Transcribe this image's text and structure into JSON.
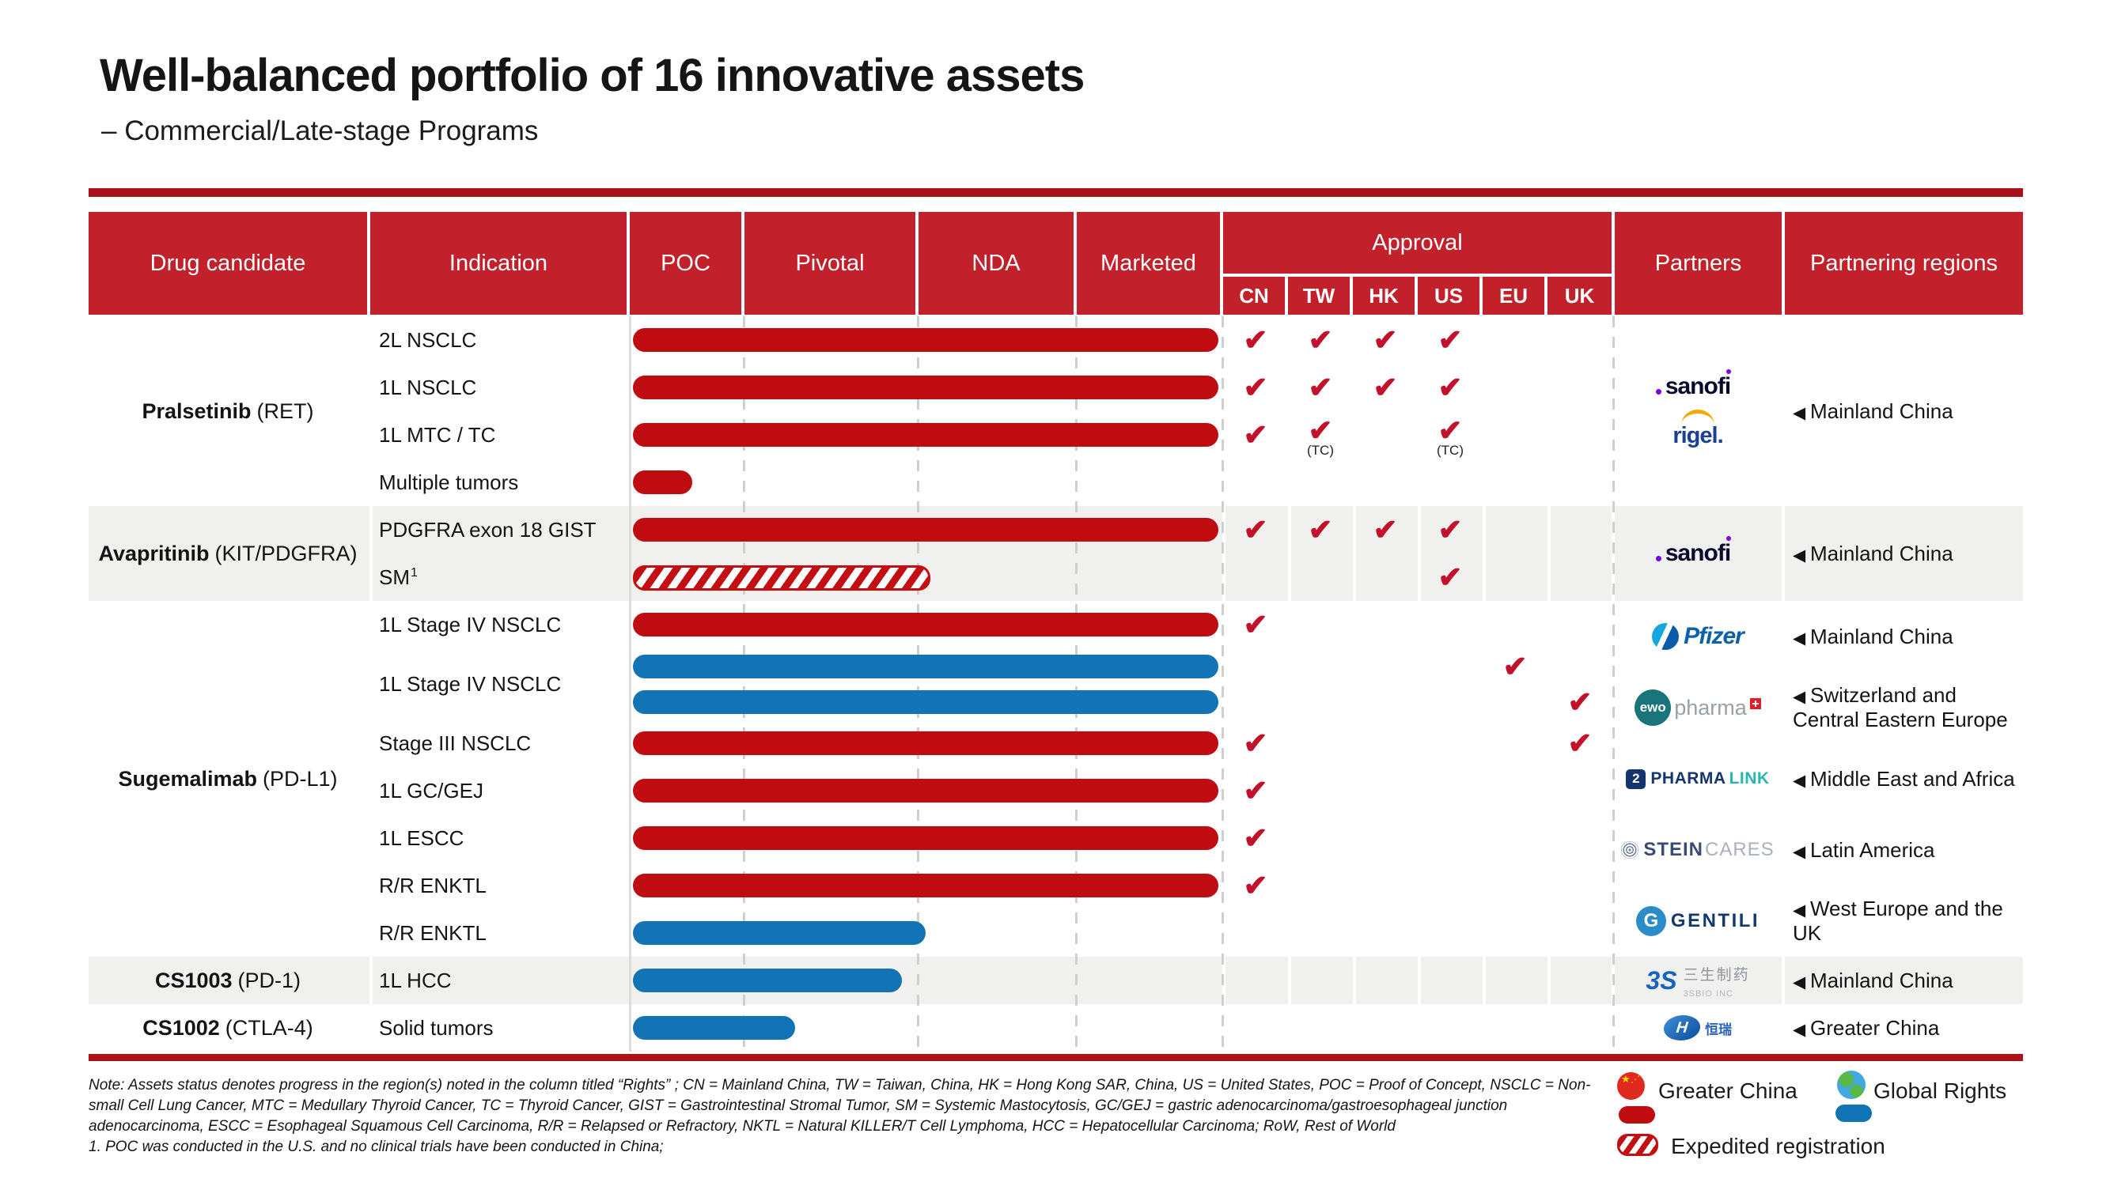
{
  "title": "Well-balanced portfolio of 16 innovative assets",
  "subtitle": "– Commercial/Late-stage Programs",
  "colors": {
    "header_red": "#C2212B",
    "rule_red": "#A81117",
    "bar_red": "#C00C10",
    "bar_blue": "#1273B5",
    "check_red": "#C2122B",
    "shaded_row_gray": "#F0F0EE"
  },
  "table": {
    "headers": {
      "drug": "Drug candidate",
      "indication": "Indication",
      "poc": "POC",
      "pivotal": "Pivotal",
      "nda": "NDA",
      "marketed": "Marketed",
      "approval": "Approval",
      "approval_regions": [
        "CN",
        "TW",
        "HK",
        "US",
        "EU",
        "UK"
      ],
      "partners": "Partners",
      "partnering": "Partnering regions"
    }
  },
  "groups": [
    {
      "drug": "Pralsetinib",
      "target": "(RET)",
      "shaded": false,
      "rows": [
        {
          "indication": "2L NSCLC",
          "lanes": [
            {
              "bar": {
                "color": "red",
                "len": 740
              },
              "checks": [
                {
                  "r": "CN"
                },
                {
                  "r": "TW"
                },
                {
                  "r": "HK"
                },
                {
                  "r": "US"
                }
              ]
            }
          ]
        },
        {
          "indication": "1L NSCLC",
          "lanes": [
            {
              "bar": {
                "color": "red",
                "len": 740
              },
              "checks": [
                {
                  "r": "CN"
                },
                {
                  "r": "TW"
                },
                {
                  "r": "HK"
                },
                {
                  "r": "US"
                }
              ]
            }
          ]
        },
        {
          "indication": "1L MTC / TC",
          "lanes": [
            {
              "bar": {
                "color": "red",
                "len": 740
              },
              "checks": [
                {
                  "r": "CN"
                },
                {
                  "r": "TW",
                  "note": "(TC)"
                },
                {
                  "r": "US",
                  "note": "(TC)"
                }
              ]
            }
          ]
        },
        {
          "indication": "Multiple tumors",
          "lanes": [
            {
              "bar": {
                "color": "red",
                "len": 75
              },
              "checks": []
            }
          ]
        }
      ],
      "partner_rows": [
        {
          "logos": [
            "sanofi",
            "rigel"
          ],
          "region": "Mainland China"
        }
      ]
    },
    {
      "drug": "Avapritinib",
      "target": "(KIT/PDGFRA)",
      "shaded": true,
      "rows": [
        {
          "indication": "PDGFRA exon 18 GIST",
          "lanes": [
            {
              "bar": {
                "color": "red",
                "len": 740
              },
              "checks": [
                {
                  "r": "CN"
                },
                {
                  "r": "TW"
                },
                {
                  "r": "HK"
                },
                {
                  "r": "US"
                }
              ]
            }
          ]
        },
        {
          "indication": "SM",
          "sup": "1",
          "lanes": [
            {
              "bar": {
                "color": "red",
                "len": 370,
                "hatched": true
              },
              "checks": [
                {
                  "r": "US"
                }
              ]
            }
          ]
        }
      ],
      "partner_rows": [
        {
          "logos": [
            "sanofi"
          ],
          "region": "Mainland China"
        }
      ]
    },
    {
      "drug": "Sugemalimab",
      "target": "(PD-L1)",
      "shaded": false,
      "rows": [
        {
          "indication": "1L Stage IV NSCLC",
          "lanes": [
            {
              "bar": {
                "color": "red",
                "len": 740
              },
              "checks": [
                {
                  "r": "CN"
                }
              ]
            }
          ]
        },
        {
          "indication": "1L Stage IV NSCLC",
          "lanes": [
            {
              "bar": {
                "color": "blue",
                "len": 740
              },
              "checks": [
                {
                  "r": "EU"
                }
              ]
            },
            {
              "bar": {
                "color": "blue",
                "len": 740
              },
              "checks": [
                {
                  "r": "UK"
                }
              ]
            }
          ]
        },
        {
          "indication": "Stage III NSCLC",
          "lanes": [
            {
              "bar": {
                "color": "red",
                "len": 740
              },
              "checks": [
                {
                  "r": "CN"
                },
                {
                  "r": "UK"
                }
              ]
            }
          ]
        },
        {
          "indication": "1L GC/GEJ",
          "lanes": [
            {
              "bar": {
                "color": "red",
                "len": 740
              },
              "checks": [
                {
                  "r": "CN"
                }
              ]
            }
          ]
        },
        {
          "indication": "1L ESCC",
          "lanes": [
            {
              "bar": {
                "color": "red",
                "len": 740
              },
              "checks": [
                {
                  "r": "CN"
                }
              ]
            }
          ]
        },
        {
          "indication": "R/R ENKTL",
          "lanes": [
            {
              "bar": {
                "color": "red",
                "len": 740
              },
              "checks": [
                {
                  "r": "CN"
                }
              ]
            }
          ]
        },
        {
          "indication": "R/R ENKTL",
          "lanes": [
            {
              "bar": {
                "color": "blue",
                "len": 370
              },
              "checks": []
            }
          ]
        }
      ],
      "partner_rows": [
        {
          "logos": [
            "pfizer"
          ],
          "region": "Mainland China"
        },
        {
          "logos": [
            "ewopharma"
          ],
          "region": "Switzerland and Central Eastern Europe"
        },
        {
          "logos": [
            "pharmalink"
          ],
          "region": "Middle East and Africa"
        },
        {
          "logos": [
            "steincares"
          ],
          "region": "Latin America"
        },
        {
          "logos": [
            "gentili"
          ],
          "region": "West Europe and the UK"
        }
      ]
    },
    {
      "drug": "CS1003",
      "target": "(PD-1)",
      "shaded": true,
      "rows": [
        {
          "indication": "1L HCC",
          "lanes": [
            {
              "bar": {
                "color": "blue",
                "len": 340
              },
              "checks": []
            }
          ]
        }
      ],
      "partner_rows": [
        {
          "logos": [
            "3sbio"
          ],
          "region": "Mainland China"
        }
      ]
    },
    {
      "drug": "CS1002",
      "target": "(CTLA-4)",
      "shaded": false,
      "rows": [
        {
          "indication": "Solid tumors",
          "lanes": [
            {
              "bar": {
                "color": "blue",
                "len": 205
              },
              "checks": []
            }
          ]
        }
      ],
      "partner_rows": [
        {
          "logos": [
            "hengrui"
          ],
          "region": "Greater China"
        }
      ]
    }
  ],
  "partner_logos": {
    "sanofi": {
      "text": "sanofi"
    },
    "rigel": {
      "text": "rigel."
    },
    "pfizer": {
      "text": "Pfizer"
    },
    "ewopharma": {
      "circle": "ewo",
      "text": "pharma"
    },
    "pharmalink": {
      "icon": "2",
      "text": "PHARMA",
      "text2": "LINK"
    },
    "steincares": {
      "text": "STEIN",
      "text2": "CARES"
    },
    "gentili": {
      "icon": "G",
      "text": "GENTILI"
    },
    "3sbio": {
      "icon": "3S",
      "text": "三生制药",
      "text2": "3SBIO INC"
    },
    "hengrui": {
      "icon": "H",
      "text": "恒瑞"
    }
  },
  "legend": {
    "greater_china": "Greater China",
    "global_rights": "Global Rights",
    "expedited": "Expedited registration"
  },
  "footnotes": [
    "Note: Assets status denotes progress in the region(s) noted in the column titled “Rights” ; CN = Mainland China, TW = Taiwan, China, HK = Hong Kong SAR, China, US = United States, POC = Proof of Concept, NSCLC = Non-",
    "small Cell Lung Cancer, MTC = Medullary Thyroid Cancer, TC = Thyroid Cancer, GIST = Gastrointestinal Stromal Tumor, SM = Systemic Mastocytosis, GC/GEJ = gastric adenocarcinoma/gastroesophageal junction",
    "adenocarcinoma, ESCC = Esophageal Squamous Cell Carcinoma, R/R = Relapsed or Refractory, NKTL = Natural KILLER/T Cell Lymphoma, HCC = Hepatocellular Carcinoma; RoW, Rest of World",
    "1. POC was conducted in the U.S. and no clinical trials have been conducted in China;"
  ]
}
